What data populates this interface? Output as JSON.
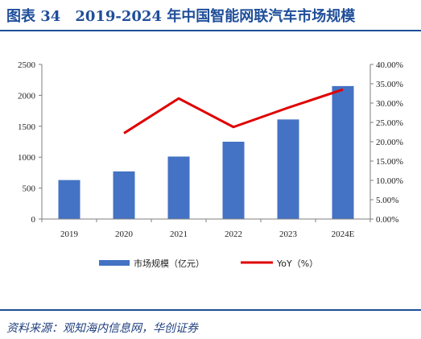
{
  "header": {
    "title": "图表 34　2019-2024 年中国智能网联汽车市场规模"
  },
  "footer": {
    "source": "资料来源：观知海内信息网，华创证券"
  },
  "colors": {
    "bar": "#4472c4",
    "line": "#e00000",
    "title": "#1f4e99"
  },
  "chart_data": {
    "type": "bar",
    "categories": [
      "2019",
      "2020",
      "2021",
      "2022",
      "2023",
      "2024E"
    ],
    "series": [
      {
        "name": "市场规模（亿元）",
        "type": "bar",
        "axis": "left",
        "values": [
          630,
          770,
          1010,
          1250,
          1610,
          2150
        ]
      },
      {
        "name": "YoY（%）",
        "type": "line",
        "axis": "right",
        "values": [
          null,
          22.2,
          31.2,
          23.8,
          28.8,
          33.5
        ]
      }
    ],
    "y_left": {
      "ylim": [
        0,
        2500
      ],
      "ticks": [
        "0",
        "500",
        "1000",
        "1500",
        "2000",
        "2500"
      ]
    },
    "y_right": {
      "ylim": [
        0,
        40
      ],
      "ticks": [
        "0.00%",
        "5.00%",
        "10.00%",
        "15.00%",
        "20.00%",
        "25.00%",
        "30.00%",
        "35.00%",
        "40.00%"
      ]
    },
    "legend": "bottom",
    "grid": false
  }
}
